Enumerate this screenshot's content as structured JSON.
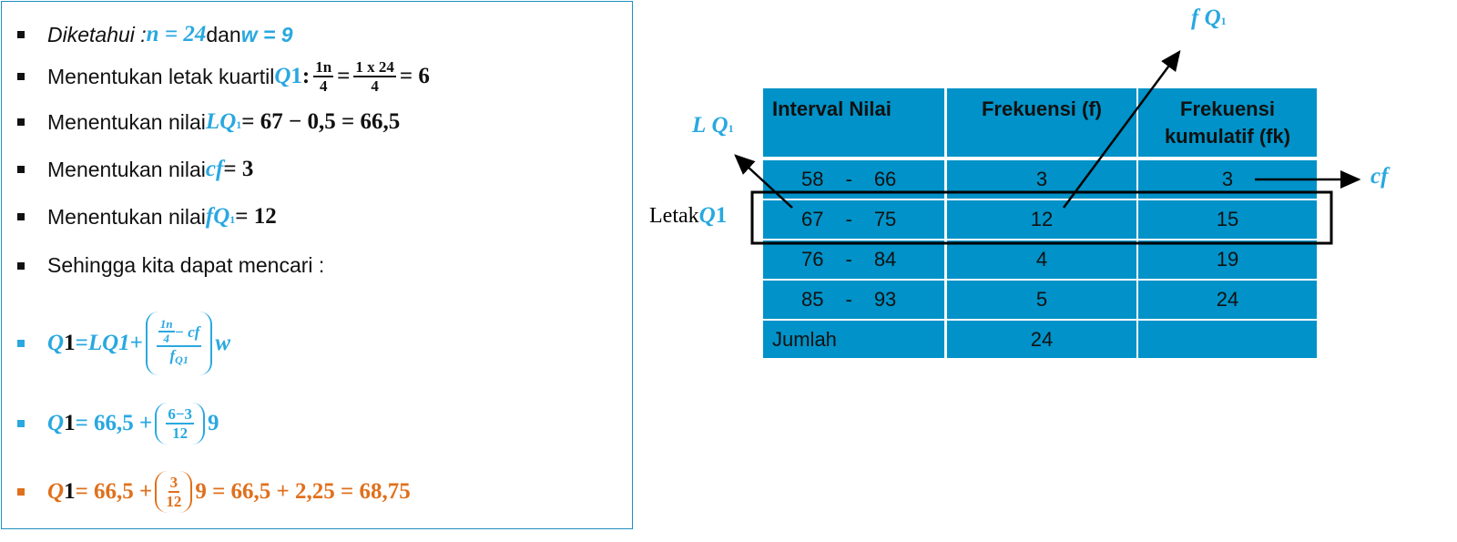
{
  "left": {
    "items": [
      {
        "label": "Diketahui :",
        "n": "n = 24",
        "conj": "dan",
        "w": "w = 9"
      },
      {
        "label": "Menentukan letak kuartil",
        "sym": "Q",
        "sub": "1",
        "colon": ":",
        "num1": "1n",
        "den1": "4",
        "eq": "=",
        "num2": "1 x 24",
        "den2": "4",
        "result": "= 6"
      },
      {
        "label": "Menentukan nilai",
        "sym": "L",
        "sub": "Q",
        "subsub": "1",
        "result": "= 67 − 0,5 = 66,5"
      },
      {
        "label": "Menentukan nilai",
        "sym": "cf",
        "result": "= 3"
      },
      {
        "label": "Menentukan nilai",
        "sym": "f",
        "sub": "Q",
        "subsub": "1",
        "result": "= 12"
      },
      {
        "label": "Sehingga kita dapat mencari :"
      }
    ],
    "formulas": [
      {
        "lhs": "Q",
        "lhs_sub": "1",
        "eq": "=",
        "l": "L",
        "l_sub": "Q1",
        "plus": "+",
        "inner_num": "1n",
        "inner_den": "4",
        "minus": "− cf",
        "den": "f",
        "den_sub": "Q1",
        "w": "w"
      },
      {
        "lhs": "Q",
        "lhs_sub": "1",
        "pre": "= 66,5 +",
        "num": "6−3",
        "den": "12",
        "post": "9"
      },
      {
        "lhs": "Q",
        "lhs_sub": "1",
        "pre": "= 66,5 +",
        "num": "3",
        "den": "12",
        "post": "9 = 66,5 + 2,25 = 68,75"
      }
    ]
  },
  "table": {
    "headers": [
      "Interval Nilai",
      "Frekuensi (f)",
      "Frekuensi kumulatif (fk)"
    ],
    "rows": [
      [
        "58",
        "-",
        "66",
        3,
        3
      ],
      [
        "67",
        "-",
        "75",
        12,
        15
      ],
      [
        "76",
        "-",
        "84",
        4,
        19
      ],
      [
        "85",
        "-",
        "93",
        5,
        24
      ]
    ],
    "footer": {
      "label": "Jumlah",
      "total": 24
    }
  },
  "annotations": {
    "lq": {
      "sym": "L",
      "sub": "Q",
      "subsub": "1"
    },
    "fq": {
      "sym": "f",
      "sub": "Q",
      "subsub": "1"
    },
    "cf": "cf",
    "letak": {
      "label": "Letak",
      "sym": "Q",
      "sub": "1"
    }
  }
}
